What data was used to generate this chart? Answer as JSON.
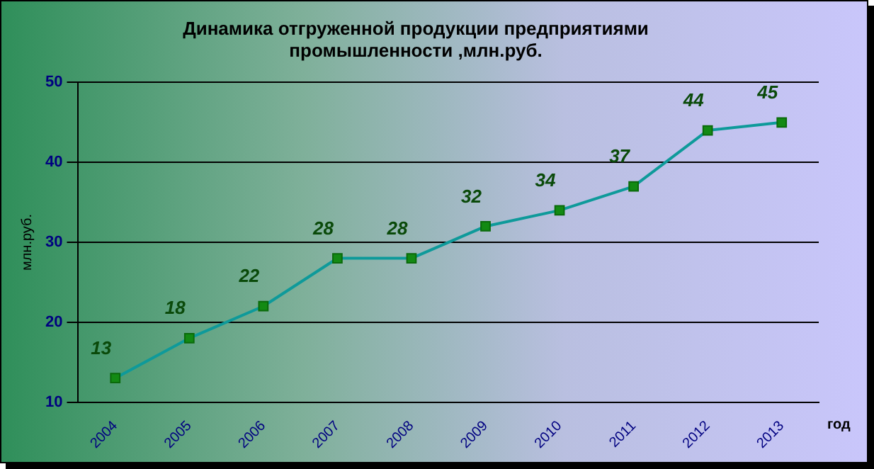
{
  "chart_data": {
    "type": "line",
    "title": "Динамика отгруженной продукции предприятиями промышленности ,млн.руб.",
    "xlabel": "год",
    "ylabel": "млн.руб.",
    "categories": [
      "2004",
      "2005",
      "2006",
      "2007",
      "2008",
      "2009",
      "2010",
      "2011",
      "2012",
      "2013"
    ],
    "series": [
      {
        "color": "#0e9a9a",
        "values": [
          13,
          18,
          22,
          28,
          28,
          32,
          34,
          37,
          44,
          45
        ]
      }
    ],
    "ylim": [
      10,
      50
    ],
    "yticks": [
      10,
      20,
      30,
      40,
      50
    ],
    "grid": "y",
    "legend": false,
    "marker": "square",
    "line_style": "solid",
    "data_labels": true
  }
}
